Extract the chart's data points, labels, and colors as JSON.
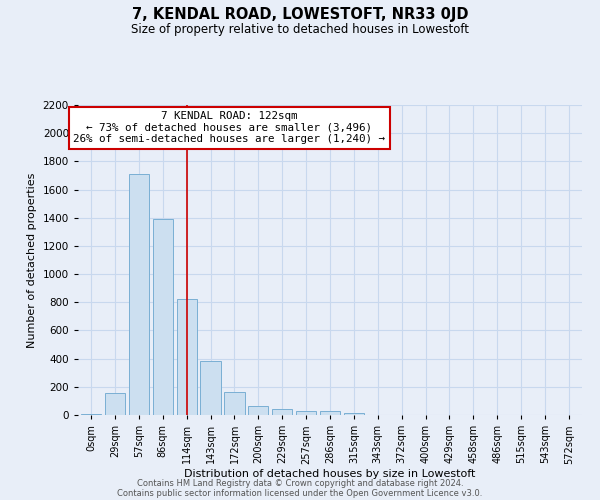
{
  "title": "7, KENDAL ROAD, LOWESTOFT, NR33 0JD",
  "subtitle": "Size of property relative to detached houses in Lowestoft",
  "xlabel": "Distribution of detached houses by size in Lowestoft",
  "ylabel": "Number of detached properties",
  "bar_labels": [
    "0sqm",
    "29sqm",
    "57sqm",
    "86sqm",
    "114sqm",
    "143sqm",
    "172sqm",
    "200sqm",
    "229sqm",
    "257sqm",
    "286sqm",
    "315sqm",
    "343sqm",
    "372sqm",
    "400sqm",
    "429sqm",
    "458sqm",
    "486sqm",
    "515sqm",
    "543sqm",
    "572sqm"
  ],
  "bar_values": [
    10,
    155,
    1710,
    1390,
    825,
    385,
    160,
    65,
    40,
    25,
    25,
    15,
    0,
    0,
    0,
    0,
    0,
    0,
    0,
    0,
    0
  ],
  "bar_color": "#ccdff0",
  "bar_edge_color": "#7aafd4",
  "vline_x": 4,
  "vline_color": "#cc0000",
  "annotation_title": "7 KENDAL ROAD: 122sqm",
  "annotation_line1": "← 73% of detached houses are smaller (3,496)",
  "annotation_line2": "26% of semi-detached houses are larger (1,240) →",
  "annotation_box_color": "#ffffff",
  "annotation_box_edge": "#cc0000",
  "ylim": [
    0,
    2200
  ],
  "yticks": [
    0,
    200,
    400,
    600,
    800,
    1000,
    1200,
    1400,
    1600,
    1800,
    2000,
    2200
  ],
  "grid_color": "#c8d8ee",
  "background_color": "#e8eef8",
  "footer_line1": "Contains HM Land Registry data © Crown copyright and database right 2024.",
  "footer_line2": "Contains public sector information licensed under the Open Government Licence v3.0."
}
